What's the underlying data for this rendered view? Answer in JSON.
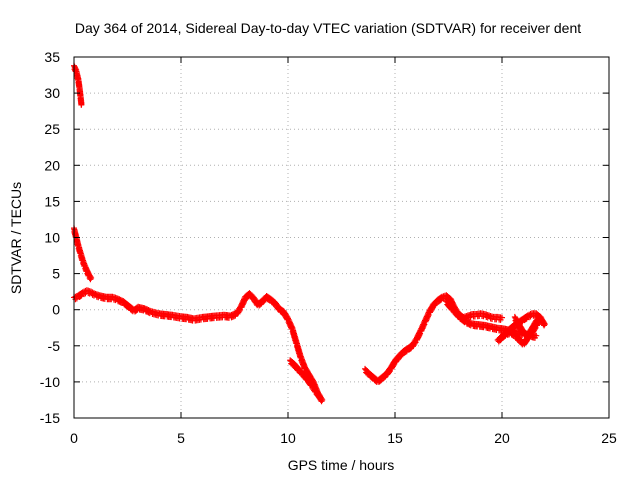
{
  "chart_data": {
    "type": "scatter",
    "title": "Day 364 of 2014, Sidereal Day-to-day VTEC variation (SDTVAR) for receiver dent",
    "xlabel": "GPS time / hours",
    "ylabel": "SDTVAR / TECUs",
    "xlim": [
      0,
      25
    ],
    "ylim": [
      -15,
      35
    ],
    "xticks": [
      0,
      5,
      10,
      15,
      20,
      25
    ],
    "yticks": [
      35,
      30,
      25,
      20,
      15,
      10,
      5,
      0,
      -5,
      -10,
      -15
    ],
    "xtick_labels": [
      "0",
      "5",
      "10",
      "15",
      "20",
      "25"
    ],
    "ytick_labels": [
      "35",
      "30",
      "25",
      "20",
      "15",
      "10",
      "5",
      "0",
      "-5",
      "-10",
      "-15"
    ],
    "grid": true,
    "marker": "+",
    "color": "#ff0000",
    "series": [
      {
        "name": "SDTVAR",
        "segments": [
          {
            "x": [
              0.0,
              0.1,
              0.2,
              0.25,
              0.3,
              0.35
            ],
            "y": [
              33.8,
              33.2,
              32.0,
              31.0,
              29.8,
              28.5
            ]
          },
          {
            "x": [
              0.0,
              0.1,
              0.2,
              0.3,
              0.4,
              0.5,
              0.6,
              0.7,
              0.8
            ],
            "y": [
              11.3,
              10.2,
              9.0,
              8.0,
              7.0,
              6.2,
              5.5,
              4.9,
              4.4
            ]
          },
          {
            "x": [
              0.0,
              0.2,
              0.4,
              0.6,
              0.8,
              1.0,
              1.2,
              1.5,
              1.8,
              2.0,
              2.3,
              2.6,
              2.8,
              3.0,
              3.3,
              3.6,
              4.0,
              4.3,
              4.6,
              5.0,
              5.3,
              5.6,
              6.0,
              6.3,
              6.6,
              7.0,
              7.3,
              7.6,
              7.8,
              8.0,
              8.2,
              8.4,
              8.6,
              8.8,
              9.0,
              9.2,
              9.4,
              9.6,
              9.8,
              10.0,
              10.2,
              10.4,
              10.6,
              10.8,
              11.0,
              11.2,
              11.4,
              11.6
            ],
            "y": [
              1.7,
              2.0,
              2.4,
              2.7,
              2.5,
              2.2,
              2.0,
              1.8,
              1.8,
              1.6,
              1.2,
              0.5,
              0.0,
              0.4,
              0.2,
              -0.2,
              -0.5,
              -0.6,
              -0.7,
              -0.9,
              -1.0,
              -1.2,
              -1.0,
              -0.9,
              -0.8,
              -0.7,
              -0.8,
              -0.4,
              0.5,
              1.8,
              2.3,
              1.7,
              0.8,
              1.3,
              1.9,
              1.5,
              1.0,
              0.2,
              -0.2,
              -1.2,
              -2.5,
              -4.5,
              -6.5,
              -8.0,
              -9.0,
              -10.0,
              -11.5,
              -12.5
            ]
          },
          {
            "x": [
              10.1,
              10.3,
              10.5,
              10.7,
              10.9,
              11.1,
              11.3,
              11.5
            ],
            "y": [
              -7.0,
              -7.5,
              -8.2,
              -8.8,
              -9.5,
              -10.3,
              -11.2,
              -12.0
            ]
          },
          {
            "x": [
              13.6,
              13.8,
              14.0,
              14.2,
              14.4,
              14.6,
              14.8,
              15.0,
              15.2,
              15.4,
              15.6,
              15.8,
              16.0,
              16.2,
              16.4,
              16.6,
              16.8,
              17.0,
              17.2,
              17.4,
              17.6,
              17.8,
              18.0,
              18.2,
              18.4,
              18.6,
              18.8,
              19.0,
              19.2,
              19.4,
              19.6,
              19.8,
              20.0
            ],
            "y": [
              -8.2,
              -8.8,
              -9.3,
              -9.8,
              -9.3,
              -8.8,
              -8.0,
              -7.0,
              -6.3,
              -5.7,
              -5.3,
              -4.9,
              -4.0,
              -2.8,
              -1.5,
              -0.2,
              0.8,
              1.4,
              1.8,
              2.0,
              1.5,
              0.3,
              -0.6,
              -1.0,
              -0.8,
              -0.6,
              -0.6,
              -0.5,
              -0.6,
              -0.8,
              -1.0,
              -1.0,
              -1.1
            ]
          },
          {
            "x": [
              17.4,
              17.7,
              18.0,
              18.3,
              18.6,
              18.9,
              19.2,
              19.5,
              19.8,
              20.1,
              20.4,
              20.7,
              21.0,
              21.3,
              21.6
            ],
            "y": [
              1.2,
              0.2,
              -0.8,
              -1.5,
              -1.9,
              -2.0,
              -2.1,
              -2.3,
              -2.5,
              -2.6,
              -2.8,
              -3.0,
              -3.2,
              -3.4,
              -3.6
            ]
          },
          {
            "x": [
              19.8,
              20.0,
              20.2,
              20.4,
              20.6,
              20.8,
              21.0,
              21.2,
              21.4,
              21.6,
              21.8,
              21.6,
              21.4,
              21.2,
              21.0,
              20.8,
              20.6,
              20.4,
              20.2,
              20.0,
              19.9
            ],
            "y": [
              -4.2,
              -3.6,
              -3.0,
              -2.5,
              -2.0,
              -1.6,
              -1.2,
              -0.8,
              -0.5,
              -0.5,
              -1.0,
              -2.0,
              -3.0,
              -3.8,
              -4.6,
              -4.0,
              -3.4,
              -3.0,
              -3.2,
              -3.6,
              -4.0
            ]
          },
          {
            "x": [
              20.6,
              20.8,
              21.0,
              21.2,
              21.4,
              21.6,
              21.8,
              22.0
            ],
            "y": [
              -1.0,
              -2.0,
              -3.0,
              -3.5,
              -2.5,
              -1.5,
              -1.0,
              -2.0
            ]
          }
        ]
      }
    ]
  }
}
